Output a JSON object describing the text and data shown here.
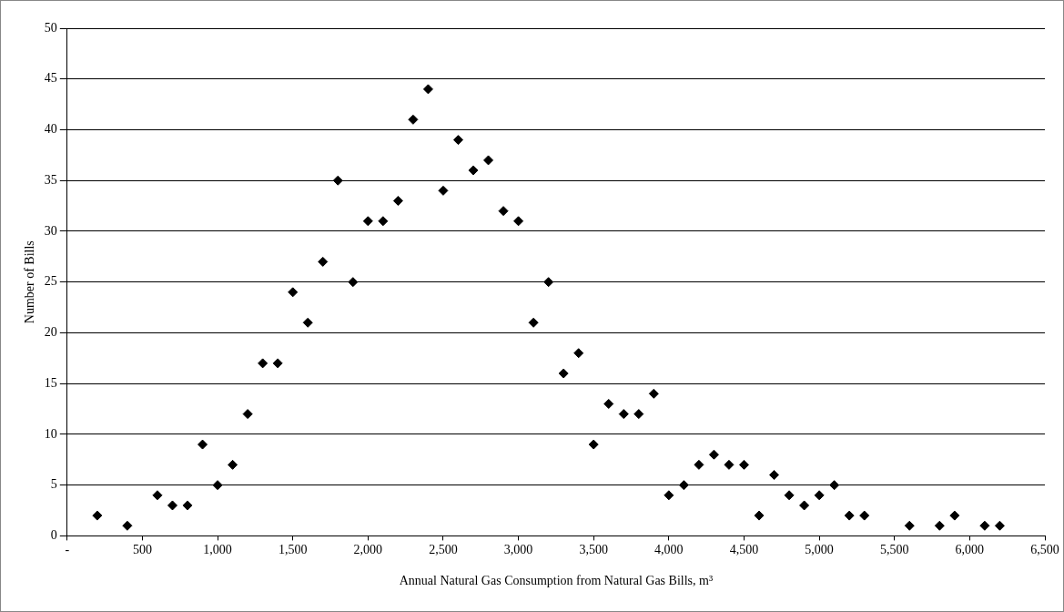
{
  "chart_data": {
    "type": "scatter",
    "xlabel": "Annual Natural Gas Consumption from Natural Gas Bills, m³",
    "ylabel": "Number of Bills",
    "x": [
      200,
      400,
      600,
      700,
      800,
      900,
      1000,
      1100,
      1200,
      1300,
      1400,
      1500,
      1600,
      1700,
      1800,
      1900,
      2000,
      2100,
      2200,
      2300,
      2400,
      2500,
      2600,
      2700,
      2800,
      2900,
      3000,
      3100,
      3200,
      3300,
      3400,
      3500,
      3600,
      3700,
      3800,
      3900,
      4000,
      4100,
      4200,
      4300,
      4400,
      4500,
      4600,
      4700,
      4800,
      4900,
      5000,
      5100,
      5200,
      5300,
      5600,
      5800,
      5900,
      6100,
      6200
    ],
    "values": [
      2,
      1,
      4,
      3,
      3,
      9,
      5,
      7,
      12,
      17,
      17,
      24,
      21,
      27,
      35,
      25,
      31,
      31,
      33,
      41,
      44,
      34,
      39,
      36,
      37,
      32,
      31,
      21,
      25,
      16,
      18,
      9,
      13,
      12,
      12,
      14,
      4,
      5,
      7,
      8,
      7,
      7,
      2,
      6,
      4,
      3,
      4,
      5,
      2,
      2,
      1,
      1,
      2,
      1,
      1
    ],
    "color": "#000000",
    "marker": "diamond",
    "grid": "y",
    "legend": false,
    "xlim": [
      0,
      6500
    ],
    "xticks": [
      {
        "value": 0,
        "label": "-"
      },
      {
        "value": 500,
        "label": "500"
      },
      {
        "value": 1000,
        "label": "1,000"
      },
      {
        "value": 1500,
        "label": "1,500"
      },
      {
        "value": 2000,
        "label": "2,000"
      },
      {
        "value": 2500,
        "label": "2,500"
      },
      {
        "value": 3000,
        "label": "3,000"
      },
      {
        "value": 3500,
        "label": "3,500"
      },
      {
        "value": 4000,
        "label": "4,000"
      },
      {
        "value": 4500,
        "label": "4,500"
      },
      {
        "value": 5000,
        "label": "5,000"
      },
      {
        "value": 5500,
        "label": "5,500"
      },
      {
        "value": 6000,
        "label": "6,000"
      },
      {
        "value": 6500,
        "label": "6,500"
      }
    ],
    "ylim": [
      0,
      50
    ],
    "yticks": [
      0,
      5,
      10,
      15,
      20,
      25,
      30,
      35,
      40,
      45,
      50
    ]
  }
}
